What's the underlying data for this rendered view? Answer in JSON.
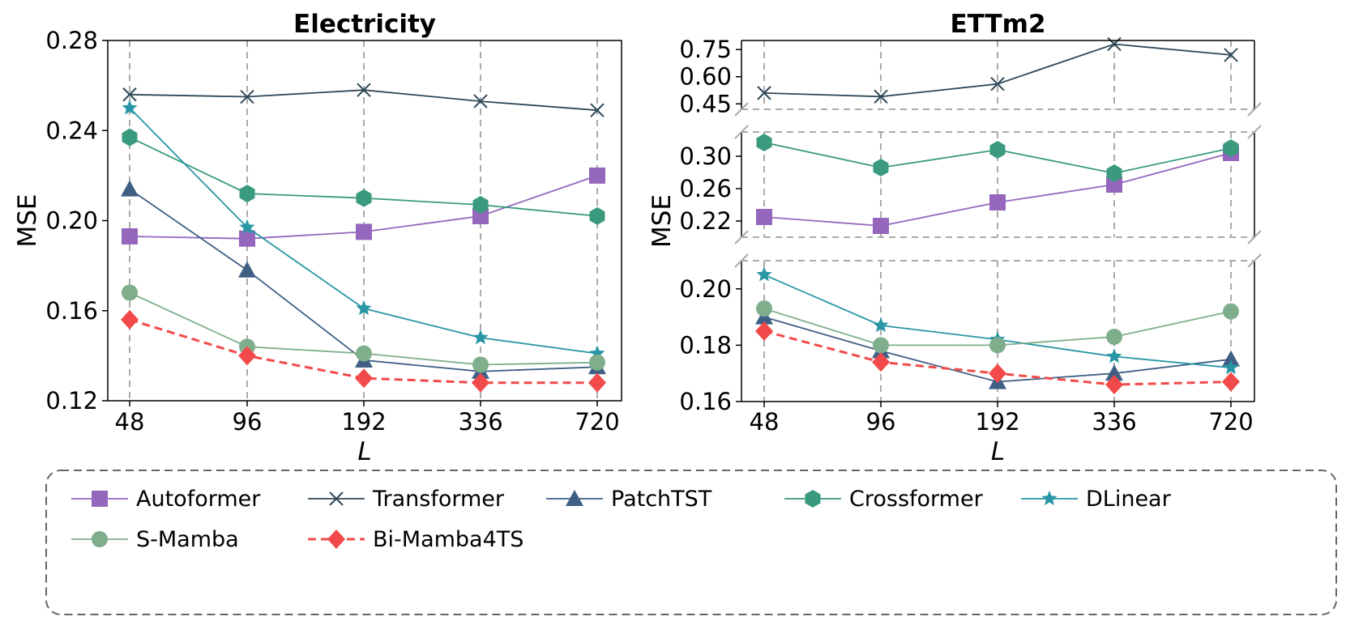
{
  "chart_data": [
    {
      "type": "line",
      "title": "Electricity",
      "xlabel": "L",
      "ylabel": "MSE",
      "categories": [
        "48",
        "96",
        "192",
        "336",
        "720"
      ],
      "yticks": [
        "0.12",
        "0.16",
        "0.20",
        "0.24",
        "0.28"
      ],
      "ylim": [
        0.12,
        0.28
      ],
      "grid": "vertical dashed",
      "series": [
        {
          "name": "Autoformer",
          "values": [
            0.193,
            0.192,
            0.195,
            0.202,
            0.22
          ]
        },
        {
          "name": "Transformer",
          "values": [
            0.256,
            0.255,
            0.258,
            0.253,
            0.249
          ]
        },
        {
          "name": "PatchTST",
          "values": [
            0.214,
            0.178,
            0.138,
            0.133,
            0.135
          ]
        },
        {
          "name": "Crossformer",
          "values": [
            0.237,
            0.212,
            0.21,
            0.207,
            0.202
          ]
        },
        {
          "name": "DLinear",
          "values": [
            0.25,
            0.197,
            0.161,
            0.148,
            0.141
          ]
        },
        {
          "name": "S-Mamba",
          "values": [
            0.168,
            0.144,
            0.141,
            0.136,
            0.137
          ]
        },
        {
          "name": "Bi-Mamba4TS",
          "values": [
            0.156,
            0.14,
            0.13,
            0.128,
            0.128
          ]
        }
      ]
    },
    {
      "type": "line",
      "title": "ETTm2",
      "xlabel": "L",
      "ylabel": "MSE",
      "categories": [
        "48",
        "96",
        "192",
        "336",
        "720"
      ],
      "grid": "vertical dashed",
      "broken_y_axis": [
        {
          "range": [
            0.42,
            0.8
          ],
          "ticks": [
            "0.45",
            "0.60",
            "0.75"
          ],
          "series": [
            "Transformer"
          ]
        },
        {
          "range": [
            0.2,
            0.33
          ],
          "ticks": [
            "0.22",
            "0.26",
            "0.30"
          ],
          "series": [
            "Autoformer",
            "Crossformer"
          ]
        },
        {
          "range": [
            0.16,
            0.21
          ],
          "ticks": [
            "0.16",
            "0.18",
            "0.20"
          ],
          "series": [
            "PatchTST",
            "DLinear",
            "S-Mamba",
            "Bi-Mamba4TS"
          ]
        }
      ],
      "series": [
        {
          "name": "Autoformer",
          "values": [
            0.225,
            0.214,
            0.243,
            0.265,
            0.304
          ]
        },
        {
          "name": "Transformer",
          "values": [
            0.51,
            0.49,
            0.56,
            0.78,
            0.72
          ]
        },
        {
          "name": "PatchTST",
          "values": [
            0.19,
            0.178,
            0.167,
            0.17,
            0.175
          ]
        },
        {
          "name": "Crossformer",
          "values": [
            0.317,
            0.286,
            0.308,
            0.279,
            0.31
          ]
        },
        {
          "name": "DLinear",
          "values": [
            0.205,
            0.187,
            0.182,
            0.176,
            0.172
          ]
        },
        {
          "name": "S-Mamba",
          "values": [
            0.193,
            0.18,
            0.18,
            0.183,
            0.192
          ]
        },
        {
          "name": "Bi-Mamba4TS",
          "values": [
            0.185,
            0.174,
            0.17,
            0.166,
            0.167
          ]
        }
      ]
    }
  ],
  "legend": {
    "placement": "bottom",
    "items": [
      {
        "name": "Autoformer",
        "color": "#9467bd",
        "marker": "square",
        "dash": false
      },
      {
        "name": "Transformer",
        "color": "#2f4858",
        "marker": "x",
        "dash": false
      },
      {
        "name": "PatchTST",
        "color": "#3f5f85",
        "marker": "triangle",
        "dash": false
      },
      {
        "name": "Crossformer",
        "color": "#3a9a7e",
        "marker": "hexagon",
        "dash": false
      },
      {
        "name": "DLinear",
        "color": "#2996a5",
        "marker": "star",
        "dash": false
      },
      {
        "name": "S-Mamba",
        "color": "#7fae8c",
        "marker": "circle",
        "dash": false
      },
      {
        "name": "Bi-Mamba4TS",
        "color": "#f24a4a",
        "marker": "diamond",
        "dash": true
      }
    ]
  }
}
